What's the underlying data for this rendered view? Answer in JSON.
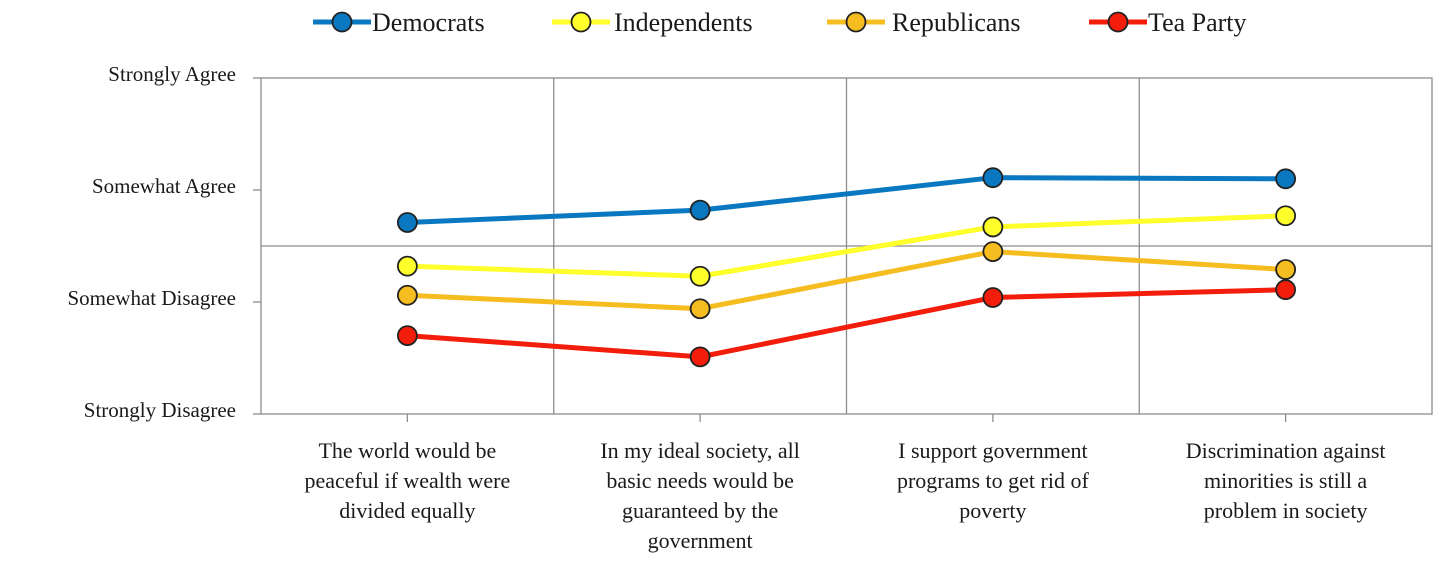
{
  "chart_data": {
    "type": "line",
    "categories": [
      [
        "The world would be",
        "peaceful if  wealth were",
        "divided  equally"
      ],
      [
        "In my ideal society, all",
        "basic needs would be",
        "guaranteed by the",
        "government"
      ],
      [
        "I support government",
        "programs to get rid of",
        "poverty"
      ],
      [
        "Discrimination against",
        "minorities is still a",
        "problem in society"
      ]
    ],
    "y_ticks": [
      {
        "value": 4,
        "label": "Strongly Agree"
      },
      {
        "value": 3,
        "label": "Somewhat Agree"
      },
      {
        "value": 2,
        "label": "Somewhat Disagree"
      },
      {
        "value": 1,
        "label": "Strongly Disagree"
      }
    ],
    "ylim": [
      1,
      4
    ],
    "midline": 2.5,
    "legend_position": "top",
    "series": [
      {
        "name": "Democrats",
        "color": "#0a78c0",
        "values": [
          2.71,
          2.82,
          3.11,
          3.1
        ]
      },
      {
        "name": "Independents",
        "color": "#ffff2b",
        "values": [
          2.32,
          2.23,
          2.67,
          2.77
        ]
      },
      {
        "name": "Republicans",
        "color": "#f5bd1f",
        "values": [
          2.06,
          1.94,
          2.45,
          2.29
        ]
      },
      {
        "name": "Tea Party",
        "color": "#f21d0a",
        "values": [
          1.7,
          1.51,
          2.04,
          2.11
        ]
      }
    ],
    "grid": true
  }
}
